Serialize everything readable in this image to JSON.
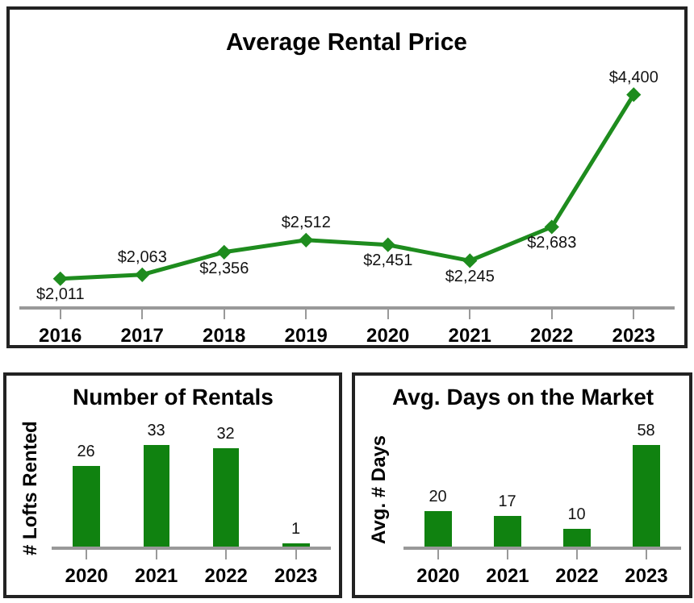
{
  "chart_data": [
    {
      "type": "line",
      "title": "Average Rental Price",
      "categories": [
        "2016",
        "2017",
        "2018",
        "2019",
        "2020",
        "2021",
        "2022",
        "2023"
      ],
      "values": [
        2011,
        2063,
        2356,
        2512,
        2451,
        2245,
        2683,
        4400
      ],
      "value_labels": [
        "$2,011",
        "$2,063",
        "$2,356",
        "$2,512",
        "$2,451",
        "$2,245",
        "$2,683",
        "$4,400"
      ],
      "color": "#1e8c1e",
      "marker": "diamond",
      "line_style": "solid"
    },
    {
      "type": "bar",
      "title": "Number of Rentals",
      "ylabel": "# Lofts Rented",
      "categories": [
        "2020",
        "2021",
        "2022",
        "2023"
      ],
      "values": [
        26,
        33,
        32,
        1
      ],
      "data_labels": true,
      "color": "#108210"
    },
    {
      "type": "bar",
      "title": "Avg. Days on the Market",
      "ylabel": "Avg. # Days",
      "categories": [
        "2020",
        "2021",
        "2022",
        "2023"
      ],
      "values": [
        20,
        17,
        10,
        58
      ],
      "data_labels": true,
      "color": "#108210"
    }
  ]
}
